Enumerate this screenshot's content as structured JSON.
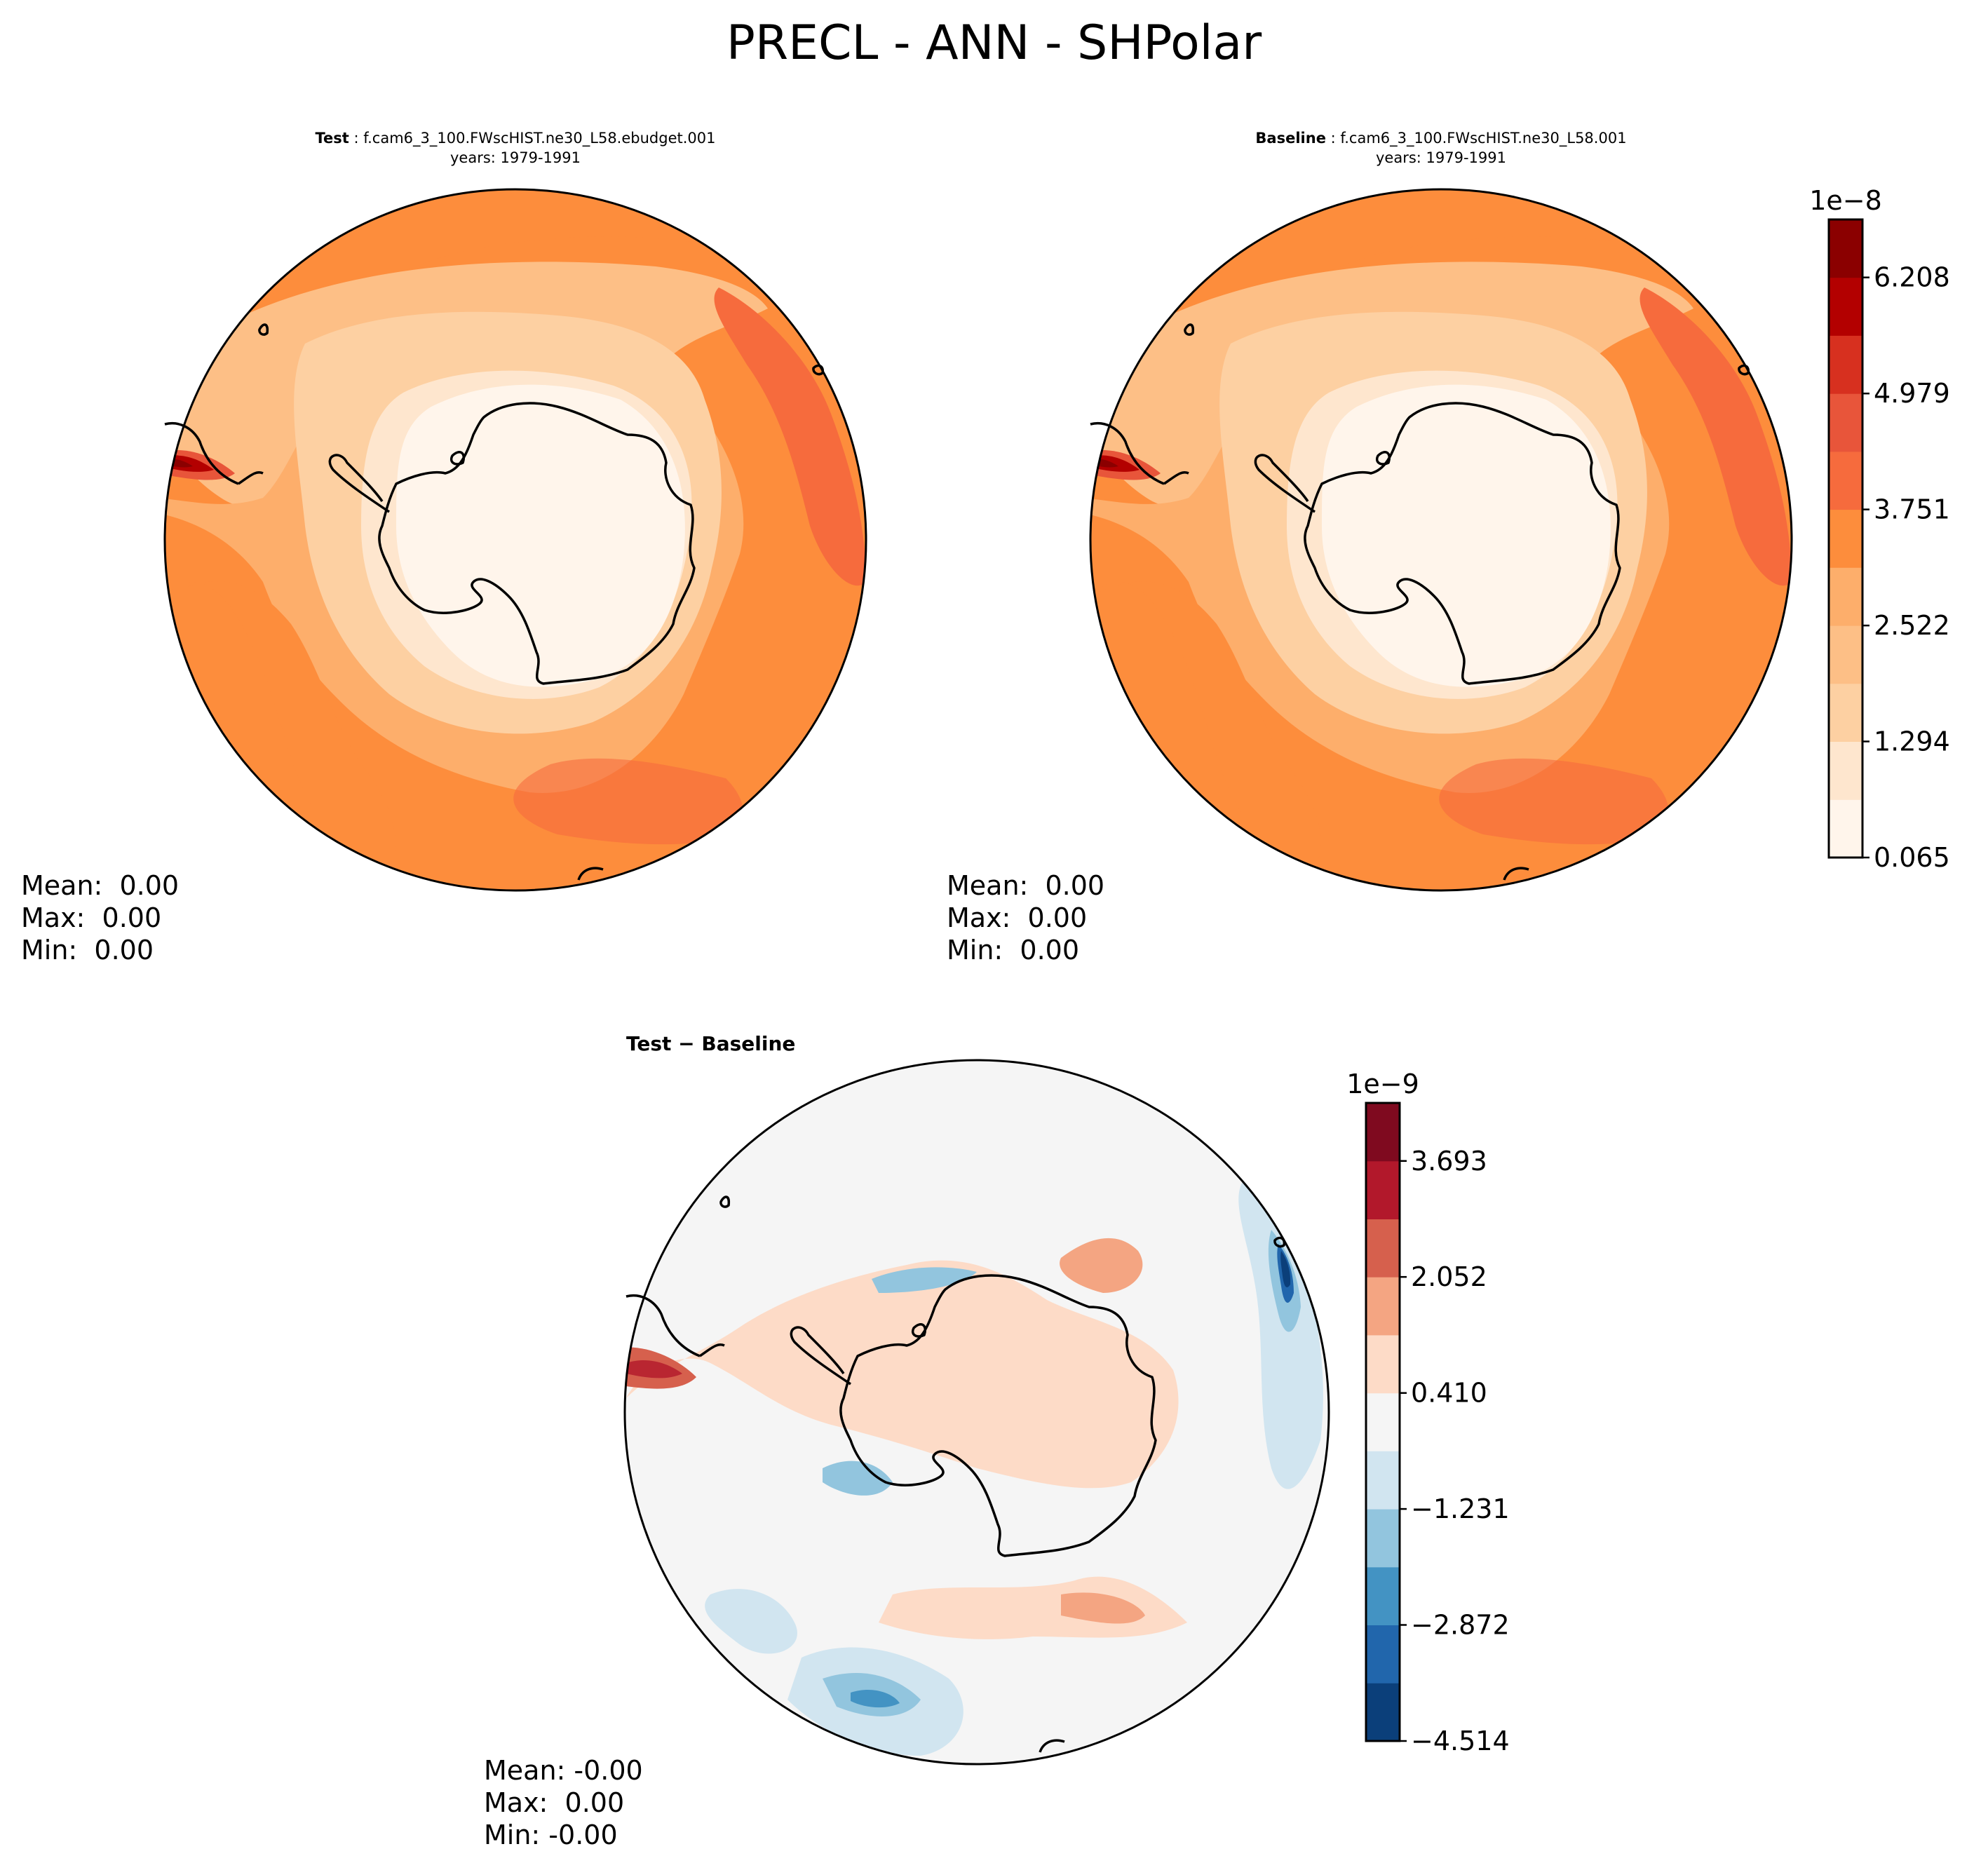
{
  "figure_title": "PRECL - ANN - SHPolar",
  "panels": {
    "test": {
      "label": "Test",
      "case": "f.cam6_3_100.FWscHIST.ne30_L58.ebudget.001",
      "years": "years: 1979-1991",
      "mean": "Mean:  0.00",
      "max": "Max:  0.00",
      "min": "Min:  0.00"
    },
    "baseline": {
      "label": "Baseline",
      "case": "f.cam6_3_100.FWscHIST.ne30_L58.001",
      "years": "years: 1979-1991",
      "mean": "Mean:  0.00",
      "max": "Max:  0.00",
      "min": "Min:  0.00"
    },
    "diff": {
      "title": "Test − Baseline",
      "mean": "Mean: -0.00",
      "max": "Max:  0.00",
      "min": "Min: -0.00"
    }
  },
  "chart_data": [
    {
      "type": "heatmap",
      "projection": "south-polar-stereographic",
      "title": "Test : f.cam6_3_100.FWscHIST.ne30_L58.ebudget.001",
      "colorbar": {
        "exponent_label": "1e−8",
        "levels": [
          0.065,
          0.679,
          1.294,
          1.908,
          2.522,
          3.137,
          3.751,
          4.365,
          4.979,
          5.594,
          6.208,
          6.822
        ],
        "tick_labels": [
          "0.065",
          "1.294",
          "2.522",
          "3.751",
          "4.979",
          "6.208"
        ],
        "colors": [
          "#fff5eb",
          "#fee6ce",
          "#fdd0a2",
          "#fdbf86",
          "#fdae6b",
          "#fd8d3c",
          "#f66b3d",
          "#e8553a",
          "#d7301f",
          "#b30000",
          "#8b0000"
        ]
      }
    },
    {
      "type": "heatmap",
      "projection": "south-polar-stereographic",
      "title": "Baseline : f.cam6_3_100.FWscHIST.ne30_L58.001",
      "colorbar_shared_with": 0
    },
    {
      "type": "heatmap",
      "projection": "south-polar-stereographic",
      "title": "Test − Baseline",
      "colorbar": {
        "exponent_label": "1e−9",
        "levels": [
          -4.514,
          -3.693,
          -2.872,
          -2.052,
          -1.231,
          -0.41,
          0.41,
          1.231,
          2.052,
          2.872,
          3.693,
          4.514
        ],
        "tick_labels": [
          "−4.514",
          "−2.872",
          "−1.231",
          "0.410",
          "2.052",
          "3.693"
        ],
        "colors": [
          "#0b3f7a",
          "#2166ac",
          "#4393c3",
          "#92c5de",
          "#d1e5f0",
          "#f5f5f5",
          "#fddbc7",
          "#f4a582",
          "#d6604d",
          "#b2182b",
          "#7f0a1f"
        ]
      }
    }
  ]
}
